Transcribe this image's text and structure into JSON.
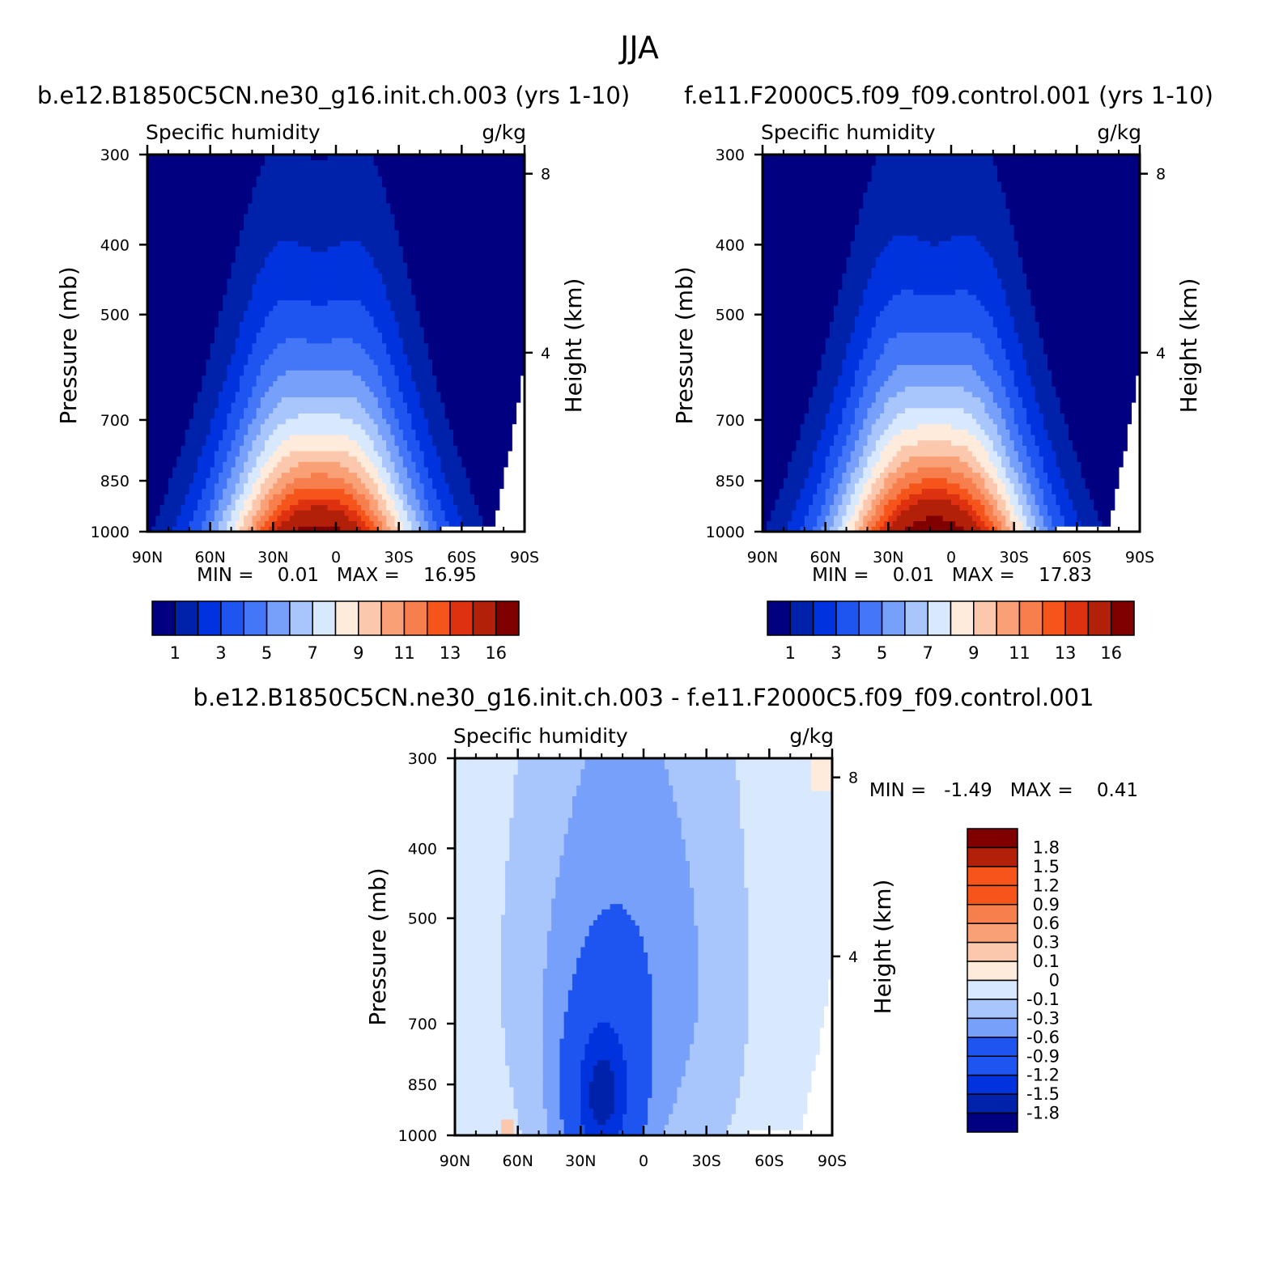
{
  "figure_title": "JJA",
  "colors": {
    "main_scale": [
      "#000080",
      "#0022aa",
      "#0033dd",
      "#1e55f0",
      "#4477f7",
      "#77a0fa",
      "#a8c6fb",
      "#d8e8fd",
      "#ffebdc",
      "#fcc8ad",
      "#faa077",
      "#f77e4d",
      "#f5551a",
      "#de3110",
      "#b2200a",
      "#800000"
    ],
    "diff_scale": [
      "#000080",
      "#0022aa",
      "#0033dd",
      "#1e55f0",
      "#77a0fa",
      "#a8c6fb",
      "#d8e8fd",
      "#ffebdc",
      "#fcc8ad",
      "#faa077",
      "#f77e4d",
      "#f5551a",
      "#b2200a",
      "#800000"
    ]
  },
  "chart_data": [
    {
      "type": "heatmap",
      "title": "b.e12.B1850C5CN.ne30_g16.init.ch.003 (yrs 1-10)",
      "left_string": "Specific humidity",
      "right_string": "g/kg",
      "xlabel": "",
      "ylabel": "Pressure (mb)",
      "ylabel_right": "Height (km)",
      "x_ticks": [
        "90N",
        "60N",
        "30N",
        "0",
        "30S",
        "60S",
        "90S"
      ],
      "y_ticks": [
        "300",
        "400",
        "500",
        "700",
        "850",
        "1000"
      ],
      "y_right_ticks": [
        "8",
        "4"
      ],
      "xlim": [
        90,
        -90
      ],
      "ylim": [
        1000,
        300
      ],
      "stats": "MIN =    0.01   MAX =    16.95",
      "min": 0.01,
      "max": 16.95,
      "levels": [
        1,
        2,
        3,
        4,
        5,
        6,
        7,
        8,
        9,
        10,
        11,
        12,
        13,
        14,
        16
      ],
      "colorbar_labels": [
        "1",
        "3",
        "5",
        "7",
        "9",
        "11",
        "13",
        "16"
      ]
    },
    {
      "type": "heatmap",
      "title": "f.e11.F2000C5.f09_f09.control.001 (yrs 1-10)",
      "left_string": "Specific humidity",
      "right_string": "g/kg",
      "xlabel": "",
      "ylabel": "Pressure (mb)",
      "ylabel_right": "Height (km)",
      "x_ticks": [
        "90N",
        "60N",
        "30N",
        "0",
        "30S",
        "60S",
        "90S"
      ],
      "y_ticks": [
        "300",
        "400",
        "500",
        "700",
        "850",
        "1000"
      ],
      "y_right_ticks": [
        "8",
        "4"
      ],
      "xlim": [
        90,
        -90
      ],
      "ylim": [
        1000,
        300
      ],
      "stats": "MIN =    0.01   MAX =    17.83",
      "min": 0.01,
      "max": 17.83,
      "levels": [
        1,
        2,
        3,
        4,
        5,
        6,
        7,
        8,
        9,
        10,
        11,
        12,
        13,
        14,
        16
      ],
      "colorbar_labels": [
        "1",
        "3",
        "5",
        "7",
        "9",
        "11",
        "13",
        "16"
      ]
    },
    {
      "type": "heatmap",
      "title": "b.e12.B1850C5CN.ne30_g16.init.ch.003 - f.e11.F2000C5.f09_f09.control.001",
      "left_string": "Specific humidity",
      "right_string": "g/kg",
      "xlabel": "",
      "ylabel": "Pressure (mb)",
      "ylabel_right": "Height (km)",
      "x_ticks": [
        "90N",
        "60N",
        "30N",
        "0",
        "30S",
        "60S",
        "90S"
      ],
      "y_ticks": [
        "300",
        "400",
        "500",
        "700",
        "850",
        "1000"
      ],
      "y_right_ticks": [
        "8",
        "4"
      ],
      "xlim": [
        90,
        -90
      ],
      "ylim": [
        1000,
        300
      ],
      "stats": "MIN =   -1.49   MAX =    0.41",
      "min": -1.49,
      "max": 0.41,
      "levels": [
        -1.8,
        -1.5,
        -1.2,
        -0.9,
        -0.6,
        -0.3,
        -0.1,
        0,
        0.1,
        0.3,
        0.6,
        0.9,
        1.2,
        1.5,
        1.8
      ],
      "colorbar_labels": [
        "1.8",
        "1.5",
        "1.2",
        "0.9",
        "0.6",
        "0.3",
        "0.1",
        "0",
        "-0.1",
        "-0.3",
        "-0.6",
        "-0.9",
        "-1.2",
        "-1.5",
        "-1.8"
      ]
    }
  ]
}
